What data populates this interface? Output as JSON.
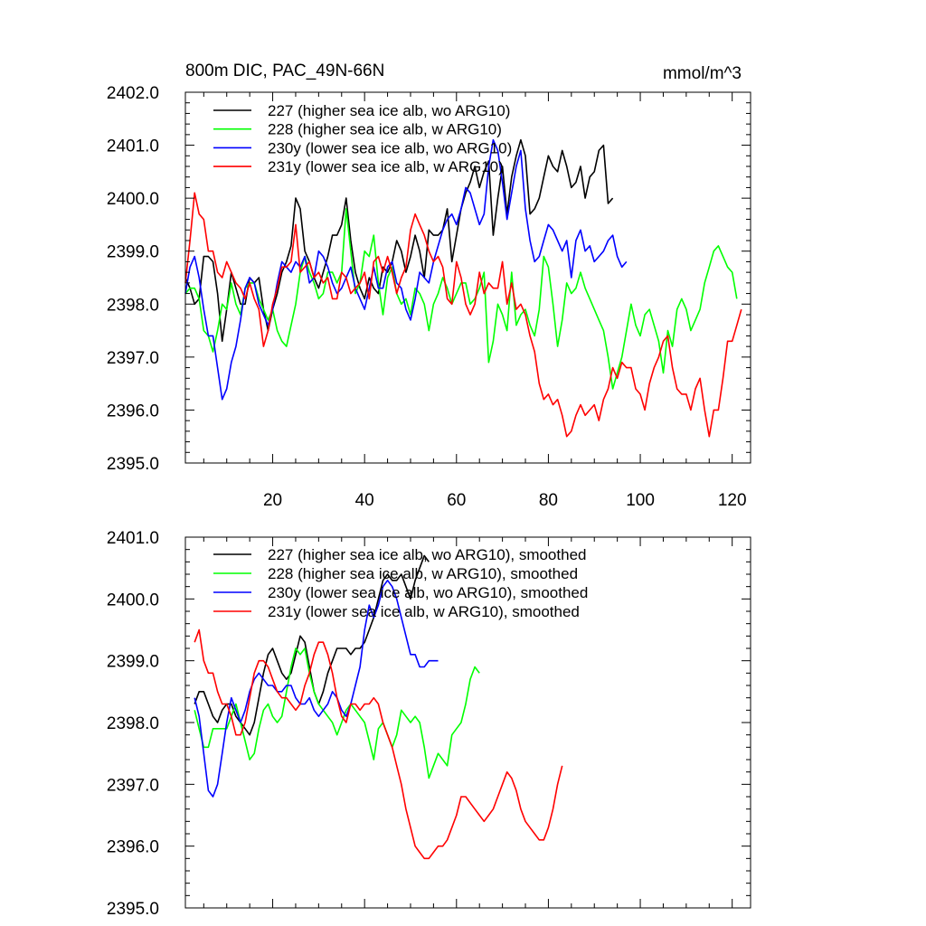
{
  "figure": {
    "left_title": "800m DIC, PAC_49N-66N",
    "right_title": "mmol/m^3"
  },
  "chart_data": [
    {
      "type": "line",
      "title": "800m DIC, PAC_49N-66N",
      "units_label": "mmol/m^3",
      "xlim": [
        1,
        124
      ],
      "ylim": [
        2395.0,
        2402.0
      ],
      "x_ticks": [
        20,
        40,
        60,
        80,
        100,
        120
      ],
      "x_tick_labels": [
        "20",
        "40",
        "60",
        "80",
        "100",
        "120"
      ],
      "y_ticks": [
        2395.0,
        2396.0,
        2397.0,
        2398.0,
        2399.0,
        2400.0,
        2401.0,
        2402.0
      ],
      "y_tick_labels": [
        "2395.0",
        "2396.0",
        "2397.0",
        "2398.0",
        "2399.0",
        "2400.0",
        "2401.0",
        "2402.0"
      ],
      "legend_position": "top-left",
      "series": [
        {
          "name": "227 (higher sea ice alb, wo ARG10)",
          "color": "#000000",
          "x_start": 1,
          "values": [
            2398.5,
            2398.3,
            2398.0,
            2398.1,
            2398.9,
            2398.9,
            2398.8,
            2398.2,
            2397.3,
            2397.9,
            2398.6,
            2398.3,
            2398.0,
            2398.0,
            2398.5,
            2398.4,
            2398.5,
            2397.9,
            2397.5,
            2397.9,
            2398.2,
            2398.6,
            2398.8,
            2399.1,
            2400.0,
            2399.8,
            2399.0,
            2398.8,
            2398.5,
            2398.3,
            2398.6,
            2398.9,
            2399.3,
            2399.3,
            2399.5,
            2400.0,
            2399.2,
            2398.6,
            2398.3,
            2398.1,
            2398.5,
            2398.3,
            2398.2,
            2398.7,
            2398.6,
            2398.8,
            2399.2,
            2399.0,
            2398.6,
            2398.9,
            2399.3,
            2399.0,
            2398.5,
            2399.4,
            2399.3,
            2399.3,
            2399.4,
            2399.8,
            2398.8,
            2399.3,
            2399.8,
            2400.1,
            2400.3,
            2400.6,
            2400.2,
            2400.5,
            2400.7,
            2399.3,
            2400.0,
            2400.6,
            2399.7,
            2400.4,
            2400.8,
            2401.1,
            2400.8,
            2399.7,
            2399.8,
            2400.0,
            2400.4,
            2400.8,
            2400.6,
            2400.5,
            2400.9,
            2400.6,
            2400.2,
            2400.3,
            2400.6,
            2400.0,
            2400.4,
            2400.5,
            2400.9,
            2401.0,
            2399.9,
            2400.0
          ]
        },
        {
          "name": "228 (higher sea ice alb, w ARG10)",
          "color": "#00ff00",
          "x_start": 1,
          "values": [
            2398.2,
            2398.3,
            2398.3,
            2398.1,
            2397.5,
            2397.4,
            2397.1,
            2397.5,
            2398.0,
            2397.9,
            2398.4,
            2398.0,
            2397.8,
            2398.3,
            2398.4,
            2398.4,
            2398.1,
            2397.9,
            2397.7,
            2397.9,
            2397.5,
            2397.3,
            2397.2,
            2397.6,
            2398.0,
            2398.6,
            2398.9,
            2398.6,
            2398.4,
            2398.1,
            2398.2,
            2398.6,
            2398.6,
            2398.4,
            2398.6,
            2399.8,
            2399.0,
            2398.2,
            2398.4,
            2399.0,
            2398.9,
            2399.3,
            2398.4,
            2397.8,
            2398.5,
            2398.7,
            2398.2,
            2398.0,
            2398.1,
            2397.8,
            2398.3,
            2398.2,
            2398.0,
            2397.5,
            2398.0,
            2398.2,
            2398.5,
            2398.3,
            2398.0,
            2398.2,
            2398.4,
            2398.4,
            2398.0,
            2398.1,
            2398.3,
            2398.6,
            2396.9,
            2397.3,
            2398.0,
            2397.8,
            2397.5,
            2398.6,
            2397.6,
            2397.8,
            2397.9,
            2397.6,
            2397.4,
            2397.9,
            2398.9,
            2398.7,
            2398.0,
            2397.2,
            2397.7,
            2398.4,
            2398.2,
            2398.3,
            2398.6,
            2398.3,
            2398.1,
            2397.9,
            2397.7,
            2397.5,
            2397.0,
            2396.4,
            2396.7,
            2397.0,
            2397.5,
            2398.0,
            2397.6,
            2397.4,
            2397.8,
            2397.9,
            2397.6,
            2397.3,
            2396.7,
            2397.5,
            2397.2,
            2397.9,
            2398.1,
            2397.9,
            2397.5,
            2397.7,
            2397.9,
            2398.4,
            2398.7,
            2399.0,
            2399.1,
            2398.9,
            2398.7,
            2398.6,
            2398.1
          ]
        },
        {
          "name": "230y (lower sea ice alb, wo ARG10)",
          "color": "#0000ff",
          "x_start": 1,
          "values": [
            2398.2,
            2398.7,
            2398.9,
            2398.5,
            2397.9,
            2397.4,
            2397.4,
            2396.8,
            2396.2,
            2396.4,
            2396.9,
            2397.2,
            2397.7,
            2398.3,
            2398.5,
            2398.4,
            2398.0,
            2397.8,
            2397.6,
            2397.9,
            2398.4,
            2398.8,
            2398.7,
            2398.6,
            2398.8,
            2398.7,
            2398.9,
            2398.4,
            2398.5,
            2399.0,
            2398.9,
            2398.7,
            2398.4,
            2398.2,
            2398.3,
            2398.5,
            2398.7,
            2398.3,
            2398.1,
            2397.9,
            2398.3,
            2398.7,
            2398.3,
            2398.3,
            2398.7,
            2398.8,
            2398.4,
            2398.3,
            2397.9,
            2397.7,
            2398.1,
            2398.6,
            2398.5,
            2398.4,
            2398.8,
            2399.1,
            2399.4,
            2399.6,
            2399.7,
            2399.5,
            2399.8,
            2400.2,
            2400.1,
            2399.8,
            2399.5,
            2399.7,
            2400.6,
            2401.1,
            2400.9,
            2400.3,
            2399.6,
            2400.1,
            2400.6,
            2400.9,
            2399.8,
            2399.2,
            2398.8,
            2398.9,
            2399.2,
            2399.5,
            2399.4,
            2399.2,
            2399.0,
            2399.2,
            2398.5,
            2399.2,
            2399.4,
            2399.0,
            2399.1,
            2398.8,
            2398.9,
            2399.0,
            2399.2,
            2399.3,
            2398.9,
            2398.7,
            2398.8
          ]
        },
        {
          "name": "231y (lower sea ice alb, w ARG10)",
          "color": "#ff0000",
          "x_start": 1,
          "values": [
            2398.4,
            2399.2,
            2400.1,
            2399.7,
            2399.6,
            2399.0,
            2399.0,
            2398.6,
            2398.5,
            2398.8,
            2398.6,
            2398.4,
            2398.3,
            2398.1,
            2398.4,
            2398.1,
            2397.9,
            2397.2,
            2397.5,
            2398.0,
            2398.3,
            2398.7,
            2398.7,
            2398.8,
            2399.5,
            2398.6,
            2398.7,
            2398.8,
            2398.5,
            2398.6,
            2398.4,
            2398.5,
            2398.1,
            2398.1,
            2398.6,
            2398.5,
            2398.2,
            2398.3,
            2398.4,
            2398.6,
            2398.1,
            2398.8,
            2398.9,
            2398.6,
            2398.9,
            2398.6,
            2398.2,
            2398.5,
            2398.7,
            2399.4,
            2399.7,
            2399.5,
            2399.3,
            2399.0,
            2398.8,
            2398.9,
            2398.7,
            2398.1,
            2398.0,
            2398.8,
            2398.5,
            2398.0,
            2397.8,
            2398.0,
            2398.6,
            2398.2,
            2398.4,
            2398.3,
            2398.3,
            2398.8,
            2398.0,
            2398.4,
            2397.9,
            2398.0,
            2397.8,
            2397.4,
            2397.1,
            2396.5,
            2396.2,
            2396.3,
            2396.1,
            2396.2,
            2395.9,
            2395.5,
            2395.6,
            2395.9,
            2396.1,
            2395.9,
            2396.0,
            2396.1,
            2395.8,
            2396.2,
            2396.4,
            2396.8,
            2396.6,
            2396.9,
            2396.8,
            2396.8,
            2396.4,
            2396.3,
            2396.0,
            2396.5,
            2396.8,
            2397.0,
            2397.3,
            2397.4,
            2396.8,
            2396.4,
            2396.3,
            2396.3,
            2396.0,
            2396.4,
            2396.6,
            2396.0,
            2395.5,
            2396.0,
            2396.0,
            2396.6,
            2397.3,
            2397.3,
            2397.6,
            2397.9
          ]
        }
      ]
    },
    {
      "type": "line",
      "title": "",
      "xlim": [
        1,
        124
      ],
      "ylim": [
        2395.0,
        2401.0
      ],
      "x_ticks": [
        20,
        40,
        60,
        80,
        100,
        120
      ],
      "y_ticks": [
        2395.0,
        2396.0,
        2397.0,
        2398.0,
        2399.0,
        2400.0,
        2401.0
      ],
      "y_tick_labels": [
        "2395.0",
        "2396.0",
        "2397.0",
        "2398.0",
        "2399.0",
        "2400.0",
        "2401.0"
      ],
      "legend_position": "top-left",
      "series": [
        {
          "name": "227 (higher sea ice alb, wo ARG10), smoothed",
          "color": "#000000",
          "x_start": 3,
          "values": [
            2398.3,
            2398.5,
            2398.5,
            2398.3,
            2398.1,
            2398.0,
            2398.2,
            2398.3,
            2398.3,
            2398.1,
            2398.0,
            2397.9,
            2397.8,
            2398.0,
            2398.4,
            2398.8,
            2399.1,
            2399.2,
            2399.0,
            2398.8,
            2398.7,
            2398.8,
            2399.1,
            2399.4,
            2399.3,
            2398.9,
            2398.5,
            2398.3,
            2398.5,
            2398.8,
            2399.0,
            2399.2,
            2399.2,
            2399.2,
            2399.1,
            2399.2,
            2399.2,
            2399.3,
            2399.5,
            2399.7,
            2400.0,
            2400.3,
            2400.4,
            2400.3,
            2400.3,
            2400.4,
            2400.2,
            2400.0,
            2400.3,
            2400.5,
            2400.7,
            2400.6
          ]
        },
        {
          "name": "228 (higher sea ice alb, w ARG10), smoothed",
          "color": "#00ff00",
          "x_start": 3,
          "values": [
            2398.2,
            2397.9,
            2397.6,
            2397.6,
            2397.9,
            2397.9,
            2397.9,
            2397.9,
            2398.1,
            2398.3,
            2398.0,
            2397.7,
            2397.4,
            2397.5,
            2397.9,
            2398.2,
            2398.3,
            2398.1,
            2398.0,
            2398.1,
            2398.5,
            2398.9,
            2399.2,
            2399.1,
            2399.2,
            2398.8,
            2398.5,
            2398.3,
            2398.2,
            2398.1,
            2398.0,
            2397.8,
            2398.0,
            2398.2,
            2398.3,
            2398.2,
            2398.1,
            2398.0,
            2397.7,
            2397.4,
            2397.9,
            2398.0,
            2397.8,
            2397.6,
            2397.8,
            2398.2,
            2398.1,
            2398.0,
            2398.1,
            2398.0,
            2397.6,
            2397.1,
            2397.3,
            2397.5,
            2397.4,
            2397.3,
            2397.8,
            2397.9,
            2398.0,
            2398.3,
            2398.7,
            2398.9,
            2398.8
          ]
        },
        {
          "name": "230y (lower sea ice alb, wo ARG10), smoothed",
          "color": "#0000ff",
          "x_start": 3,
          "values": [
            2398.4,
            2398.1,
            2397.5,
            2396.9,
            2396.8,
            2397.0,
            2397.5,
            2398.0,
            2398.4,
            2398.2,
            2398.0,
            2398.2,
            2398.5,
            2398.7,
            2398.8,
            2398.7,
            2398.6,
            2398.6,
            2398.5,
            2398.5,
            2398.6,
            2398.6,
            2398.4,
            2398.3,
            2398.3,
            2398.4,
            2398.2,
            2398.1,
            2398.2,
            2398.3,
            2398.5,
            2398.4,
            2398.2,
            2398.1,
            2398.3,
            2398.6,
            2398.9,
            2399.5,
            2399.9,
            2399.7,
            2399.9,
            2400.2,
            2400.3,
            2400.2,
            2400.0,
            2399.7,
            2399.4,
            2399.1,
            2399.1,
            2398.9,
            2398.9,
            2399.0,
            2399.0,
            2399.0
          ]
        },
        {
          "name": "231y (lower sea ice alb, w ARG10), smoothed",
          "color": "#ff0000",
          "x_start": 3,
          "values": [
            2399.3,
            2399.5,
            2399.0,
            2398.8,
            2398.8,
            2398.5,
            2398.3,
            2398.3,
            2398.1,
            2397.8,
            2397.8,
            2398.0,
            2398.4,
            2398.8,
            2399.0,
            2399.0,
            2398.9,
            2398.7,
            2398.5,
            2398.4,
            2398.4,
            2398.3,
            2398.2,
            2398.3,
            2398.6,
            2398.8,
            2399.1,
            2399.3,
            2399.3,
            2399.1,
            2398.8,
            2398.4,
            2398.1,
            2398.0,
            2398.3,
            2398.3,
            2398.2,
            2398.3,
            2398.3,
            2398.4,
            2398.3,
            2398.0,
            2397.8,
            2397.6,
            2397.3,
            2397.0,
            2396.6,
            2396.3,
            2396.0,
            2395.9,
            2395.8,
            2395.8,
            2395.9,
            2396.0,
            2396.0,
            2396.1,
            2396.3,
            2396.5,
            2396.8,
            2396.8,
            2396.7,
            2396.6,
            2396.5,
            2396.4,
            2396.5,
            2396.6,
            2396.8,
            2397.0,
            2397.2,
            2397.1,
            2396.9,
            2396.6,
            2396.4,
            2396.3,
            2396.2,
            2396.1,
            2396.1,
            2396.3,
            2396.6,
            2397.0,
            2397.3
          ]
        }
      ]
    }
  ]
}
